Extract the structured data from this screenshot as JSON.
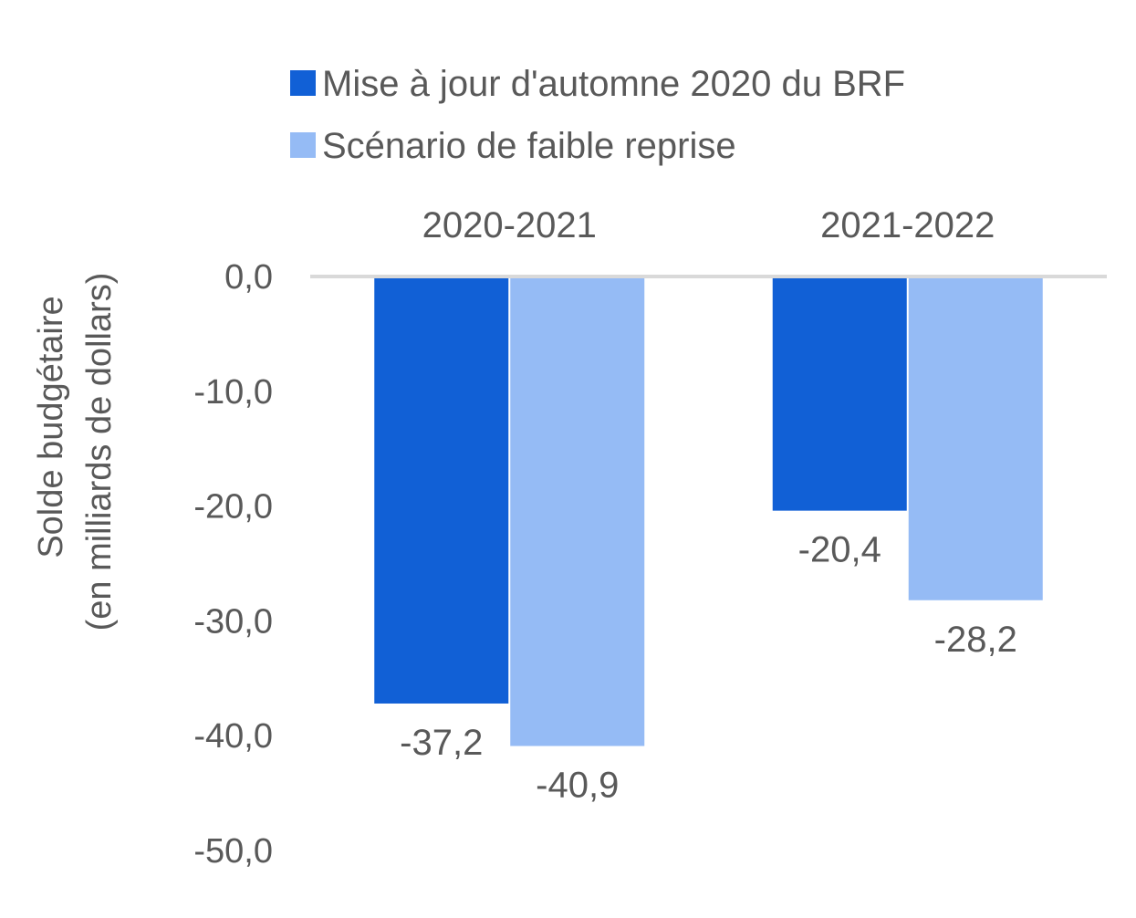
{
  "chart_data": {
    "type": "bar",
    "categories": [
      "2020-2021",
      "2021-2022"
    ],
    "series": [
      {
        "name": "Mise à jour d'automne 2020 du BRF",
        "values": [
          -37.2,
          -20.4
        ],
        "labels": [
          "-37,2",
          "-20,4"
        ],
        "color": "#1160D6"
      },
      {
        "name": "Scénario de faible reprise",
        "values": [
          -40.9,
          -28.2
        ],
        "labels": [
          "-40,9",
          "-28,2"
        ],
        "color": "#95BBF5"
      }
    ],
    "ylabel": [
      "Solde budgétaire",
      "(en milliards de dollars)"
    ],
    "ylim": [
      -50,
      0
    ],
    "yticks": [
      0,
      -10,
      -20,
      -30,
      -40,
      -50
    ],
    "ytick_labels": [
      "0,0",
      "-10,0",
      "-20,0",
      "-30,0",
      "-40,0",
      "-50,0"
    ],
    "category_axis_position": "top",
    "legend_position": "top",
    "grid": false,
    "axis_color": "#D9D9D9",
    "text_color": "#595959"
  }
}
